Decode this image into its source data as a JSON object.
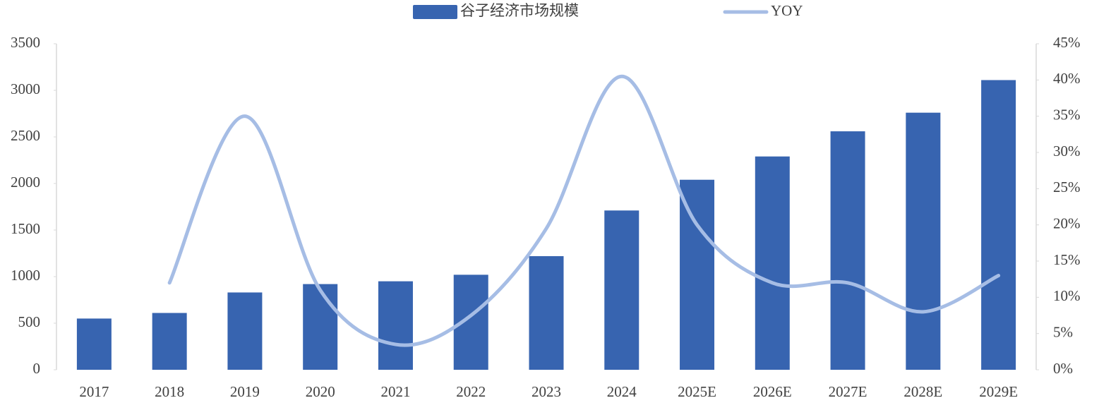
{
  "chart_data": {
    "type": "bar",
    "categories": [
      "2017",
      "2018",
      "2019",
      "2020",
      "2021",
      "2022",
      "2023",
      "2024",
      "2025E",
      "2026E",
      "2027E",
      "2028E",
      "2029E"
    ],
    "series": [
      {
        "name": "谷子经济市场规模",
        "color": "#3764b0",
        "type": "bar",
        "values": [
          550,
          610,
          830,
          920,
          950,
          1020,
          1220,
          1710,
          2040,
          2290,
          2560,
          2760,
          3110
        ]
      },
      {
        "name": "YOY",
        "color": "#a6bde5",
        "type": "line",
        "axis": "y2",
        "values": [
          null,
          12,
          35,
          11,
          3.5,
          7.5,
          19.5,
          40.5,
          20,
          12,
          12,
          8,
          13
        ]
      }
    ],
    "ylim": [
      0,
      3500
    ],
    "yticks": [
      0,
      500,
      1000,
      1500,
      2000,
      2500,
      3000,
      3500
    ],
    "y2lim": [
      0,
      45
    ],
    "y2ticks": [
      {
        "value": 0,
        "label": "0%"
      },
      {
        "value": 5,
        "label": "5%"
      },
      {
        "value": 10,
        "label": "10%"
      },
      {
        "value": 15,
        "label": "15%"
      },
      {
        "value": 20,
        "label": "20%"
      },
      {
        "value": 25,
        "label": "25%"
      },
      {
        "value": 30,
        "label": "30%"
      },
      {
        "value": 35,
        "label": "35%"
      },
      {
        "value": 40,
        "label": "40%"
      },
      {
        "value": 45,
        "label": "45%"
      }
    ],
    "legend": "top",
    "grid": false
  }
}
